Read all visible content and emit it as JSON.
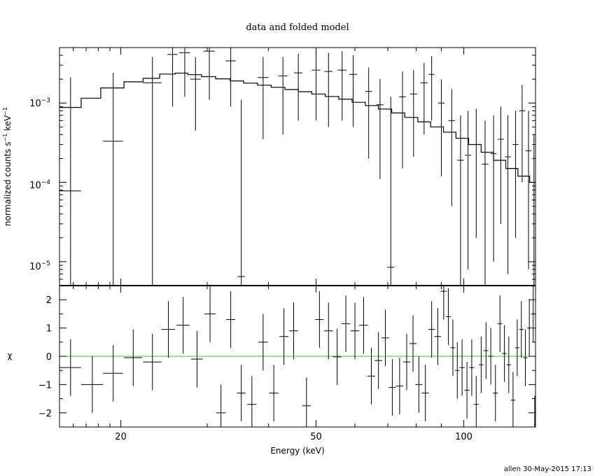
{
  "chart_data": {
    "type": "scatter",
    "title": "data and folded model",
    "xlabel": "Energy (keV)",
    "x_scale": "log",
    "xlim": [
      15,
      140
    ],
    "x_ticks": [
      20,
      50,
      100
    ],
    "footer": "allen 30-May-2015 17:13",
    "top_panel": {
      "ylabel": "normalized counts s⁻¹ keV⁻¹",
      "ylabel_text": "normalized counts s",
      "ylabel_sup1": "−1",
      "ylabel_mid": " keV",
      "ylabel_sup2": "−1",
      "y_scale": "log",
      "ylim": [
        5e-06,
        0.005
      ],
      "y_ticks": [
        {
          "base": "10",
          "exp": "−3",
          "value": 0.001
        },
        {
          "base": "10",
          "exp": "−4",
          "value": 0.0001
        },
        {
          "base": "10",
          "exp": "−5",
          "value": 1e-05
        }
      ],
      "data": [
        {
          "x": 15.8,
          "dx": 0.8,
          "y": 7.8e-05,
          "ylo": 1e-07,
          "yhi": 0.0021
        },
        {
          "x": 19.3,
          "dx": 0.9,
          "y": 0.00033,
          "ylo": 1e-07,
          "yhi": 0.0024
        },
        {
          "x": 23.2,
          "dx": 1.0,
          "y": 0.0018,
          "ylo": 1e-07,
          "yhi": 0.0038
        },
        {
          "x": 25.5,
          "dx": 0.6,
          "y": 0.0041,
          "ylo": 0.0009,
          "yhi": 0.006
        },
        {
          "x": 27.0,
          "dx": 0.7,
          "y": 0.0043,
          "ylo": 0.0012,
          "yhi": 0.006
        },
        {
          "x": 28.4,
          "dx": 0.7,
          "y": 0.002,
          "ylo": 0.00045,
          "yhi": 0.0038
        },
        {
          "x": 30.3,
          "dx": 0.8,
          "y": 0.0045,
          "ylo": 0.0011,
          "yhi": 0.006
        },
        {
          "x": 33.5,
          "dx": 0.8,
          "y": 0.0034,
          "ylo": 0.0009,
          "yhi": 0.005
        },
        {
          "x": 35.2,
          "dx": 0.6,
          "y": 6.5e-06,
          "ylo": 1e-07,
          "yhi": 0.0011
        },
        {
          "x": 39.0,
          "dx": 1.0,
          "y": 0.0021,
          "ylo": 0.00035,
          "yhi": 0.0038
        },
        {
          "x": 42.8,
          "dx": 0.9,
          "y": 0.0022,
          "ylo": 0.0004,
          "yhi": 0.0038
        },
        {
          "x": 46.0,
          "dx": 0.9,
          "y": 0.0024,
          "ylo": 0.0006,
          "yhi": 0.0042
        },
        {
          "x": 50.0,
          "dx": 1.0,
          "y": 0.0026,
          "ylo": 0.0006,
          "yhi": 0.0045
        },
        {
          "x": 53.0,
          "dx": 1.0,
          "y": 0.0025,
          "ylo": 0.0005,
          "yhi": 0.0043
        },
        {
          "x": 56.5,
          "dx": 1.2,
          "y": 0.0026,
          "ylo": 0.0006,
          "yhi": 0.0045
        },
        {
          "x": 59.5,
          "dx": 1.1,
          "y": 0.0023,
          "ylo": 0.0005,
          "yhi": 0.004
        },
        {
          "x": 64.0,
          "dx": 1.0,
          "y": 0.0014,
          "ylo": 0.0002,
          "yhi": 0.0028
        },
        {
          "x": 67.5,
          "dx": 1.1,
          "y": 0.00095,
          "ylo": 0.00011,
          "yhi": 0.002
        },
        {
          "x": 71.0,
          "dx": 1.2,
          "y": 8.5e-06,
          "ylo": 1e-07,
          "yhi": 0.0012
        },
        {
          "x": 75.0,
          "dx": 1.2,
          "y": 0.0012,
          "ylo": 0.00015,
          "yhi": 0.0025
        },
        {
          "x": 79.0,
          "dx": 1.3,
          "y": 0.0013,
          "ylo": 0.00021,
          "yhi": 0.0026
        },
        {
          "x": 83.0,
          "dx": 1.4,
          "y": 0.0018,
          "ylo": 0.0004,
          "yhi": 0.0032
        },
        {
          "x": 86.0,
          "dx": 1.2,
          "y": 0.0023,
          "ylo": 0.0006,
          "yhi": 0.0039
        },
        {
          "x": 90.0,
          "dx": 1.4,
          "y": 0.001,
          "ylo": 0.00012,
          "yhi": 0.002
        },
        {
          "x": 94.5,
          "dx": 1.4,
          "y": 0.0006,
          "ylo": 5e-05,
          "yhi": 0.0015
        },
        {
          "x": 98.5,
          "dx": 1.5,
          "y": 0.00019,
          "ylo": 5e-06,
          "yhi": 0.0007
        },
        {
          "x": 102.0,
          "dx": 1.5,
          "y": 0.00022,
          "ylo": 8e-06,
          "yhi": 0.0008
        },
        {
          "x": 106.0,
          "dx": 1.5,
          "y": 0.0003,
          "ylo": 2e-05,
          "yhi": 0.00085
        },
        {
          "x": 110.5,
          "dx": 1.6,
          "y": 0.00017,
          "ylo": 5e-06,
          "yhi": 0.0006
        },
        {
          "x": 115.0,
          "dx": 1.6,
          "y": 0.00023,
          "ylo": 1e-05,
          "yhi": 0.0007
        },
        {
          "x": 119.0,
          "dx": 1.7,
          "y": 0.00035,
          "ylo": 3e-05,
          "yhi": 0.0009
        },
        {
          "x": 123.0,
          "dx": 1.7,
          "y": 0.00021,
          "ylo": 7e-06,
          "yhi": 0.0007
        },
        {
          "x": 127.5,
          "dx": 1.7,
          "y": 0.0003,
          "ylo": 2e-05,
          "yhi": 0.0008
        },
        {
          "x": 131.5,
          "dx": 1.8,
          "y": 0.0008,
          "ylo": 0.0001,
          "yhi": 0.0017
        },
        {
          "x": 135.5,
          "dx": 1.8,
          "y": 0.00025,
          "ylo": 8e-06,
          "yhi": 0.0008
        },
        {
          "x": 139.0,
          "dx": 1.5,
          "y": 6e-05,
          "ylo": 1e-07,
          "yhi": 0.0004
        }
      ],
      "model": [
        {
          "x0": 15.0,
          "x1": 16.6,
          "y": 0.00088
        },
        {
          "x0": 16.6,
          "x1": 18.2,
          "y": 0.00115
        },
        {
          "x0": 18.2,
          "x1": 20.3,
          "y": 0.00155
        },
        {
          "x0": 20.3,
          "x1": 22.2,
          "y": 0.00185
        },
        {
          "x0": 22.2,
          "x1": 24.0,
          "y": 0.00205
        },
        {
          "x0": 24.0,
          "x1": 25.8,
          "y": 0.00232
        },
        {
          "x0": 25.8,
          "x1": 27.4,
          "y": 0.00238
        },
        {
          "x0": 27.4,
          "x1": 29.2,
          "y": 0.00228
        },
        {
          "x0": 29.2,
          "x1": 31.2,
          "y": 0.00215
        },
        {
          "x0": 31.2,
          "x1": 33.4,
          "y": 0.00202
        },
        {
          "x0": 33.4,
          "x1": 35.6,
          "y": 0.0019
        },
        {
          "x0": 35.6,
          "x1": 38.0,
          "y": 0.00178
        },
        {
          "x0": 38.0,
          "x1": 40.5,
          "y": 0.00168
        },
        {
          "x0": 40.5,
          "x1": 43.2,
          "y": 0.00158
        },
        {
          "x0": 43.2,
          "x1": 46.0,
          "y": 0.00148
        },
        {
          "x0": 46.0,
          "x1": 49.0,
          "y": 0.00139
        },
        {
          "x0": 49.0,
          "x1": 52.2,
          "y": 0.0013
        },
        {
          "x0": 52.2,
          "x1": 55.6,
          "y": 0.00121
        },
        {
          "x0": 55.6,
          "x1": 59.2,
          "y": 0.00112
        },
        {
          "x0": 59.2,
          "x1": 63.0,
          "y": 0.00102
        },
        {
          "x0": 63.0,
          "x1": 67.0,
          "y": 0.00093
        },
        {
          "x0": 67.0,
          "x1": 71.3,
          "y": 0.00084
        },
        {
          "x0": 71.3,
          "x1": 75.8,
          "y": 0.00075
        },
        {
          "x0": 75.8,
          "x1": 80.6,
          "y": 0.00066
        },
        {
          "x0": 80.6,
          "x1": 85.6,
          "y": 0.00058
        },
        {
          "x0": 85.6,
          "x1": 90.9,
          "y": 0.0005
        },
        {
          "x0": 90.9,
          "x1": 96.4,
          "y": 0.00043
        },
        {
          "x0": 96.4,
          "x1": 102.3,
          "y": 0.00036
        },
        {
          "x0": 102.3,
          "x1": 108.5,
          "y": 0.0003
        },
        {
          "x0": 108.5,
          "x1": 115.0,
          "y": 0.00024
        },
        {
          "x0": 115.0,
          "x1": 121.8,
          "y": 0.00019
        },
        {
          "x0": 121.8,
          "x1": 128.9,
          "y": 0.00015
        },
        {
          "x0": 128.9,
          "x1": 136.2,
          "y": 0.00012
        },
        {
          "x0": 136.2,
          "x1": 140.0,
          "y": 0.0001
        }
      ]
    },
    "bottom_panel": {
      "ylabel": "χ",
      "ylim": [
        -2.5,
        2.5
      ],
      "y_ticks": [
        2,
        1,
        0,
        -1,
        -2
      ],
      "y_tick_labels": [
        "2",
        "1",
        "0",
        "−1",
        "−2"
      ],
      "zero_line_color": "#33cc33",
      "data": [
        {
          "x": 15.8,
          "dx": 0.8,
          "y": -0.4,
          "err": 1.0
        },
        {
          "x": 17.5,
          "dx": 0.9,
          "y": -1.0,
          "err": 1.0
        },
        {
          "x": 19.3,
          "dx": 0.9,
          "y": -0.6,
          "err": 1.0
        },
        {
          "x": 21.2,
          "dx": 0.9,
          "y": -0.05,
          "err": 1.0
        },
        {
          "x": 23.2,
          "dx": 1.0,
          "y": -0.2,
          "err": 1.0
        },
        {
          "x": 25.0,
          "dx": 0.8,
          "y": 0.95,
          "err": 1.0
        },
        {
          "x": 26.8,
          "dx": 0.8,
          "y": 1.1,
          "err": 1.0
        },
        {
          "x": 28.6,
          "dx": 0.8,
          "y": -0.1,
          "err": 1.0
        },
        {
          "x": 30.4,
          "dx": 0.8,
          "y": 1.5,
          "err": 1.0
        },
        {
          "x": 32.0,
          "dx": 0.7,
          "y": -2.0,
          "err": 1.0
        },
        {
          "x": 33.5,
          "dx": 0.7,
          "y": 1.3,
          "err": 1.0
        },
        {
          "x": 35.2,
          "dx": 0.7,
          "y": -1.3,
          "err": 1.0
        },
        {
          "x": 37.0,
          "dx": 0.8,
          "y": -1.7,
          "err": 1.0
        },
        {
          "x": 39.0,
          "dx": 0.9,
          "y": 0.5,
          "err": 1.0
        },
        {
          "x": 41.0,
          "dx": 0.9,
          "y": -1.3,
          "err": 1.0
        },
        {
          "x": 43.0,
          "dx": 0.9,
          "y": 0.7,
          "err": 1.0
        },
        {
          "x": 45.0,
          "dx": 0.9,
          "y": 0.9,
          "err": 1.0
        },
        {
          "x": 47.8,
          "dx": 1.0,
          "y": -1.75,
          "err": 1.0
        },
        {
          "x": 50.8,
          "dx": 1.0,
          "y": 1.3,
          "err": 1.0
        },
        {
          "x": 53.0,
          "dx": 1.1,
          "y": 0.9,
          "err": 1.0
        },
        {
          "x": 55.2,
          "dx": 1.1,
          "y": -0.02,
          "err": 1.0
        },
        {
          "x": 57.5,
          "dx": 1.2,
          "y": 1.15,
          "err": 1.0
        },
        {
          "x": 60.0,
          "dx": 1.2,
          "y": 0.9,
          "err": 1.0
        },
        {
          "x": 62.5,
          "dx": 1.3,
          "y": 1.1,
          "err": 1.0
        },
        {
          "x": 64.8,
          "dx": 1.2,
          "y": -0.7,
          "err": 1.0
        },
        {
          "x": 67.0,
          "dx": 1.2,
          "y": -0.15,
          "err": 1.0
        },
        {
          "x": 69.2,
          "dx": 1.2,
          "y": 0.65,
          "err": 1.0
        },
        {
          "x": 71.5,
          "dx": 1.2,
          "y": -1.1,
          "err": 1.0
        },
        {
          "x": 74.0,
          "dx": 1.3,
          "y": -1.05,
          "err": 1.0
        },
        {
          "x": 76.5,
          "dx": 1.3,
          "y": -0.2,
          "err": 1.0
        },
        {
          "x": 78.8,
          "dx": 1.3,
          "y": 0.45,
          "err": 1.0
        },
        {
          "x": 81.0,
          "dx": 1.3,
          "y": -1.0,
          "err": 1.0
        },
        {
          "x": 83.5,
          "dx": 1.4,
          "y": -1.3,
          "err": 1.0
        },
        {
          "x": 86.0,
          "dx": 1.4,
          "y": 0.95,
          "err": 1.0
        },
        {
          "x": 88.5,
          "dx": 1.4,
          "y": 0.7,
          "err": 1.0
        },
        {
          "x": 91.0,
          "dx": 1.4,
          "y": 2.3,
          "err": 1.0
        },
        {
          "x": 93.0,
          "dx": 1.0,
          "y": 1.4,
          "err": 1.0
        },
        {
          "x": 95.0,
          "dx": 1.0,
          "y": 0.3,
          "err": 1.0
        },
        {
          "x": 97.0,
          "dx": 1.0,
          "y": -0.5,
          "err": 1.0
        },
        {
          "x": 99.2,
          "dx": 1.2,
          "y": -0.4,
          "err": 1.0
        },
        {
          "x": 101.5,
          "dx": 1.2,
          "y": -1.2,
          "err": 1.0
        },
        {
          "x": 103.8,
          "dx": 1.2,
          "y": -0.4,
          "err": 1.0
        },
        {
          "x": 106.0,
          "dx": 1.2,
          "y": -1.7,
          "err": 1.0
        },
        {
          "x": 108.5,
          "dx": 1.2,
          "y": -0.3,
          "err": 1.0
        },
        {
          "x": 111.0,
          "dx": 1.3,
          "y": 0.2,
          "err": 1.0
        },
        {
          "x": 113.5,
          "dx": 1.3,
          "y": 0.0,
          "err": 1.0
        },
        {
          "x": 116.0,
          "dx": 1.3,
          "y": -1.3,
          "err": 1.0
        },
        {
          "x": 118.5,
          "dx": 1.3,
          "y": 1.15,
          "err": 1.0
        },
        {
          "x": 121.0,
          "dx": 1.3,
          "y": 0.1,
          "err": 1.0
        },
        {
          "x": 123.5,
          "dx": 1.3,
          "y": -0.3,
          "err": 1.0
        },
        {
          "x": 126.0,
          "dx": 1.3,
          "y": -1.55,
          "err": 1.0
        },
        {
          "x": 128.5,
          "dx": 1.3,
          "y": 0.3,
          "err": 1.0
        },
        {
          "x": 131.0,
          "dx": 1.3,
          "y": 0.95,
          "err": 1.0
        },
        {
          "x": 133.5,
          "dx": 1.3,
          "y": -0.05,
          "err": 1.0
        },
        {
          "x": 136.0,
          "dx": 1.3,
          "y": 1.0,
          "err": 1.0
        },
        {
          "x": 138.5,
          "dx": 1.3,
          "y": 1.5,
          "err": 1.0
        },
        {
          "x": 139.5,
          "dx": 0.5,
          "y": -2.4,
          "err": 1.0
        }
      ]
    }
  }
}
